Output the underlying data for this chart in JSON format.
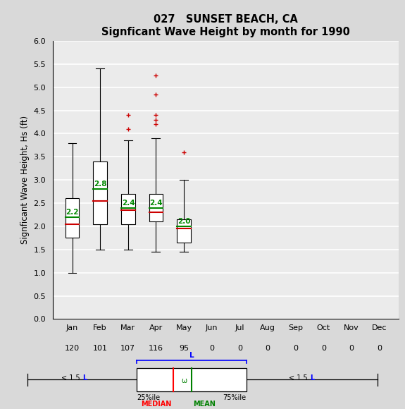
{
  "title1": "027   SUNSET BEACH, CA",
  "title2": "Signficant Wave Height by month for 1990",
  "ylabel": "Signficant Wave Height, Hs (ft)",
  "months": [
    "Jan",
    "Feb",
    "Mar",
    "Apr",
    "May",
    "Jun",
    "Jul",
    "Aug",
    "Sep",
    "Oct",
    "Nov",
    "Dec"
  ],
  "counts": [
    120,
    101,
    107,
    116,
    95,
    0,
    0,
    0,
    0,
    0,
    0,
    0
  ],
  "ylim": [
    0.0,
    6.0
  ],
  "yticks": [
    0.0,
    0.5,
    1.0,
    1.5,
    2.0,
    2.5,
    3.0,
    3.5,
    4.0,
    4.5,
    5.0,
    5.5,
    6.0
  ],
  "boxes": [
    {
      "month_idx": 0,
      "q1": 1.75,
      "median": 2.05,
      "q3": 2.6,
      "mean": 2.2,
      "whisker_low": 1.0,
      "whisker_high": 3.8,
      "fliers": []
    },
    {
      "month_idx": 1,
      "q1": 2.05,
      "median": 2.55,
      "q3": 3.4,
      "mean": 2.8,
      "whisker_low": 1.5,
      "whisker_high": 5.4,
      "fliers": []
    },
    {
      "month_idx": 2,
      "q1": 2.05,
      "median": 2.35,
      "q3": 2.7,
      "mean": 2.4,
      "whisker_low": 1.5,
      "whisker_high": 3.85,
      "fliers": [
        4.1,
        4.4
      ]
    },
    {
      "month_idx": 3,
      "q1": 2.1,
      "median": 2.3,
      "q3": 2.7,
      "mean": 2.4,
      "whisker_low": 1.45,
      "whisker_high": 3.9,
      "fliers": [
        4.2,
        4.3,
        4.4,
        4.85,
        5.25
      ]
    },
    {
      "month_idx": 4,
      "q1": 1.65,
      "median": 1.95,
      "q3": 2.15,
      "mean": 2.0,
      "whisker_low": 1.45,
      "whisker_high": 3.0,
      "fliers": [
        3.6
      ]
    }
  ],
  "box_width": 0.5,
  "median_color": "#cc0000",
  "mean_color": "#008800",
  "flier_color": "#cc0000",
  "box_facecolor": "white",
  "box_edgecolor": "black",
  "whisker_color": "black",
  "cap_color": "black",
  "background_color": "#d9d9d9",
  "plot_bg_color": "#ebebeb",
  "grid_color": "white",
  "title_fontsize": 10.5,
  "axis_fontsize": 8.5,
  "tick_fontsize": 8
}
